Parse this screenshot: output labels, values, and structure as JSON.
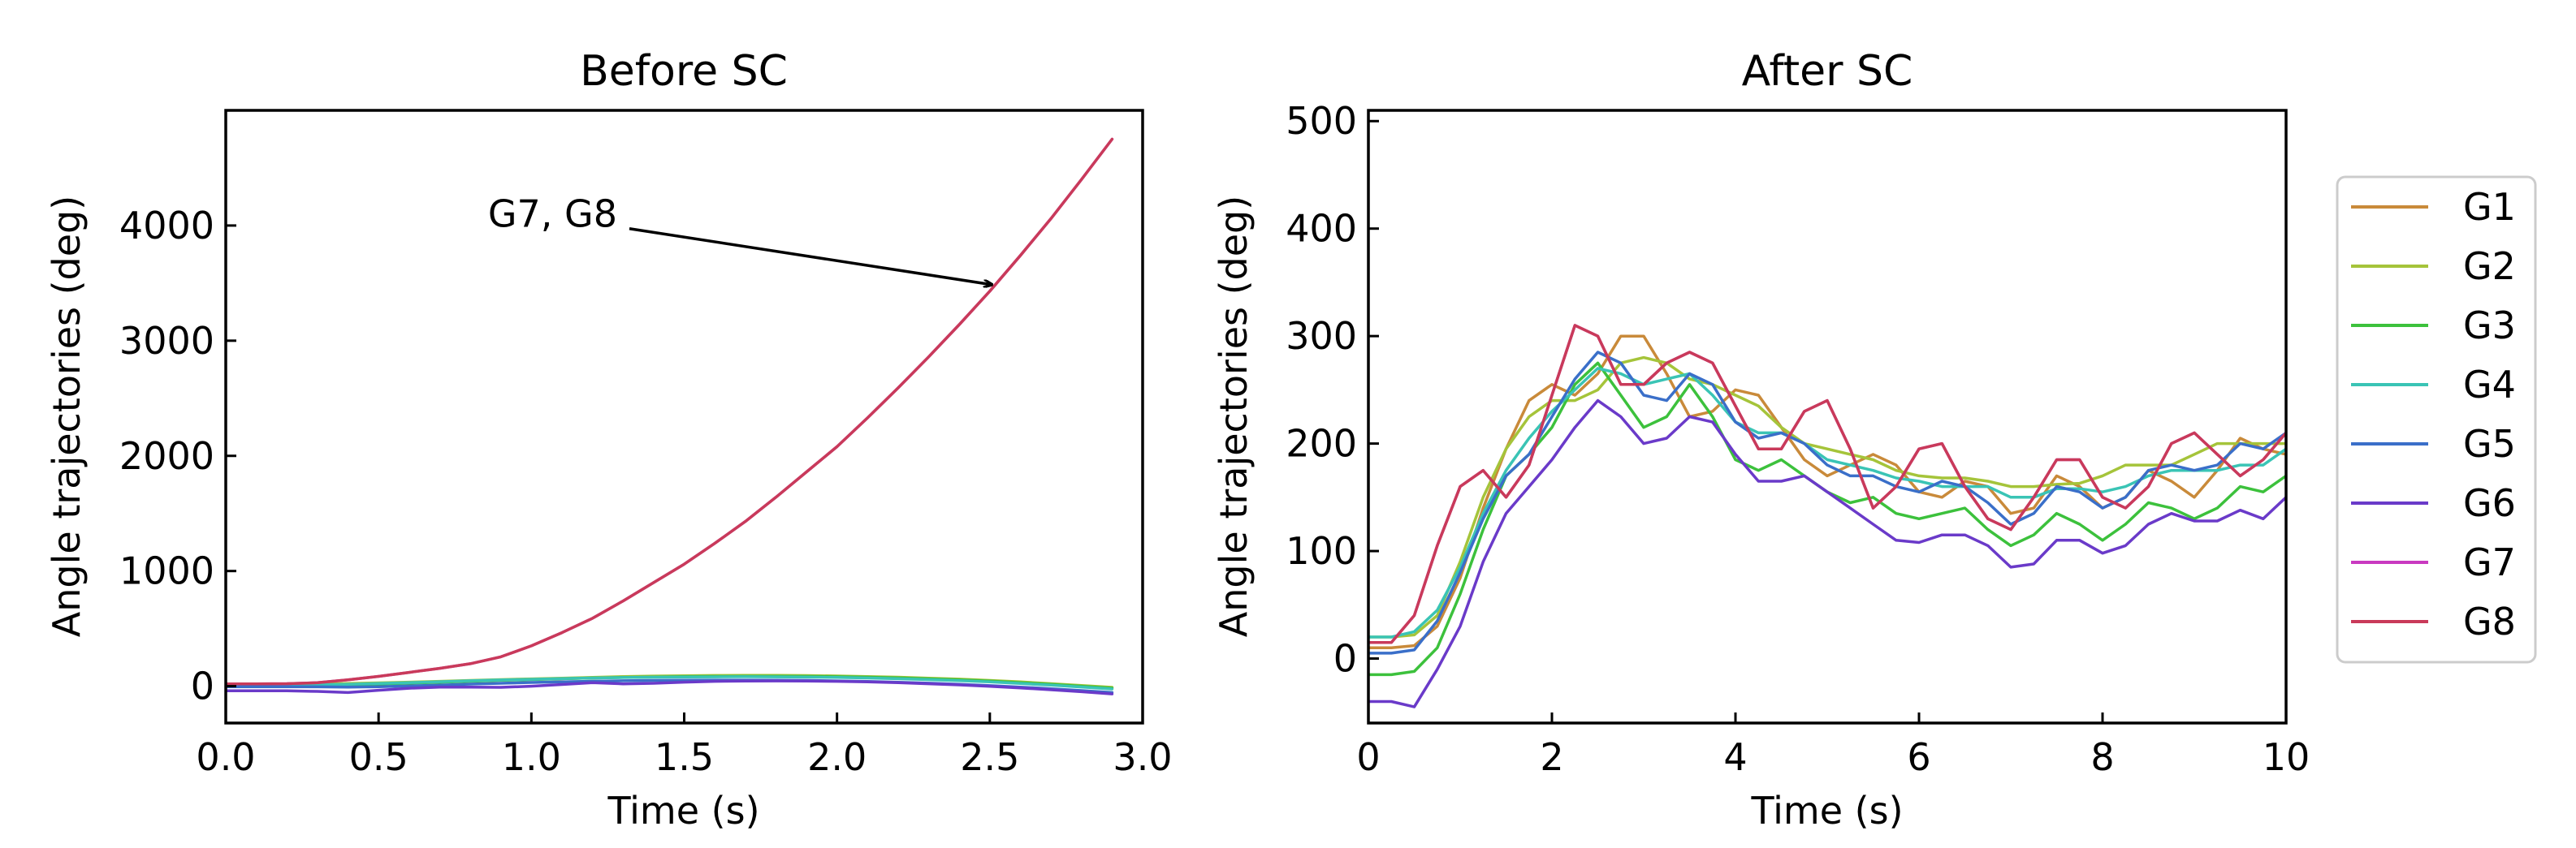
{
  "chart_data": [
    {
      "type": "line",
      "title": "Before SC",
      "xlabel": "Time (s)",
      "ylabel": "Angle trajectories (deg)",
      "xlim": [
        0,
        3
      ],
      "ylim": [
        -320,
        5000
      ],
      "xticks": [
        0.0,
        0.5,
        1.0,
        1.5,
        2.0,
        2.5,
        3.0
      ],
      "xtick_labels": [
        "0.0",
        "0.5",
        "1.0",
        "1.5",
        "2.0",
        "2.5",
        "3.0"
      ],
      "yticks": [
        0,
        1000,
        2000,
        3000,
        4000
      ],
      "ytick_labels": [
        "0",
        "1000",
        "2000",
        "3000",
        "4000"
      ],
      "annotation": {
        "text": "G7, G8",
        "text_x": 0.55,
        "text_y": 4100,
        "arrow_to_x": 2.5,
        "arrow_to_y": 3500
      },
      "x": [
        0,
        0.1,
        0.2,
        0.3,
        0.4,
        0.5,
        0.6,
        0.7,
        0.8,
        0.9,
        1.0,
        1.1,
        1.2,
        1.3,
        1.4,
        1.5,
        1.6,
        1.7,
        1.8,
        1.9,
        2.0,
        2.1,
        2.2,
        2.3,
        2.4,
        2.5,
        2.6,
        2.7,
        2.8,
        2.9
      ],
      "series": [
        {
          "name": "G1",
          "color": "#c98a3a",
          "values": [
            10,
            10,
            12,
            15,
            20,
            25,
            30,
            38,
            45,
            52,
            58,
            65,
            72,
            78,
            82,
            85,
            87,
            88,
            88,
            87,
            84,
            80,
            74,
            66,
            57,
            46,
            33,
            18,
            2,
            -15
          ]
        },
        {
          "name": "G2",
          "color": "#a5c43a",
          "values": [
            12,
            12,
            14,
            18,
            23,
            29,
            35,
            42,
            50,
            57,
            63,
            70,
            77,
            83,
            88,
            91,
            93,
            94,
            94,
            92,
            89,
            84,
            78,
            70,
            61,
            50,
            37,
            22,
            6,
            -10
          ]
        },
        {
          "name": "G3",
          "color": "#3cc13c",
          "values": [
            0,
            0,
            2,
            6,
            12,
            18,
            26,
            34,
            43,
            51,
            58,
            65,
            71,
            76,
            80,
            83,
            85,
            86,
            86,
            85,
            82,
            78,
            72,
            64,
            55,
            44,
            31,
            16,
            0,
            -17
          ]
        },
        {
          "name": "G4",
          "color": "#3ac4b5",
          "values": [
            5,
            5,
            7,
            11,
            17,
            24,
            31,
            39,
            47,
            54,
            60,
            66,
            71,
            75,
            78,
            80,
            81,
            82,
            81,
            79,
            76,
            71,
            65,
            57,
            48,
            37,
            24,
            9,
            -7,
            -24
          ]
        },
        {
          "name": "G5",
          "color": "#3a6fc9",
          "values": [
            -5,
            -5,
            -5,
            -6,
            -8,
            -4,
            2,
            10,
            18,
            25,
            32,
            38,
            43,
            47,
            50,
            52,
            53,
            53,
            52,
            50,
            46,
            41,
            34,
            26,
            16,
            5,
            -8,
            -22,
            -38,
            -55
          ]
        },
        {
          "name": "G6",
          "color": "#6a3ac9",
          "values": [
            -40,
            -40,
            -40,
            -45,
            -55,
            -35,
            -18,
            -8,
            -8,
            -10,
            0,
            15,
            30,
            20,
            25,
            35,
            42,
            45,
            46,
            45,
            42,
            37,
            30,
            21,
            11,
            -1,
            -15,
            -31,
            -48,
            -67
          ]
        },
        {
          "name": "G7",
          "color": "#c93ac0",
          "values": [
            20,
            20,
            22,
            30,
            55,
            85,
            120,
            155,
            195,
            255,
            350,
            465,
            590,
            740,
            900,
            1060,
            1240,
            1430,
            1640,
            1860,
            2080,
            2330,
            2590,
            2860,
            3140,
            3430,
            3740,
            4060,
            4400,
            4750
          ]
        },
        {
          "name": "G8",
          "color": "#c93a5a",
          "values": [
            20,
            20,
            22,
            30,
            55,
            85,
            120,
            155,
            195,
            255,
            350,
            465,
            590,
            740,
            900,
            1060,
            1240,
            1430,
            1640,
            1860,
            2080,
            2330,
            2590,
            2860,
            3140,
            3430,
            3740,
            4060,
            4400,
            4750
          ]
        }
      ]
    },
    {
      "type": "line",
      "title": "After SC",
      "xlabel": "Time (s)",
      "ylabel": "Angle trajectories (deg)",
      "xlim": [
        0,
        10
      ],
      "ylim": [
        -60,
        510
      ],
      "xticks": [
        0,
        2,
        4,
        6,
        8,
        10
      ],
      "xtick_labels": [
        "0",
        "2",
        "4",
        "6",
        "8",
        "10"
      ],
      "yticks": [
        0,
        100,
        200,
        300,
        400,
        500
      ],
      "ytick_labels": [
        "0",
        "100",
        "200",
        "300",
        "400",
        "500"
      ],
      "legend_position": "outside-right",
      "x": [
        0,
        0.25,
        0.5,
        0.75,
        1.0,
        1.25,
        1.5,
        1.75,
        2.0,
        2.25,
        2.5,
        2.75,
        3.0,
        3.25,
        3.5,
        3.75,
        4.0,
        4.25,
        4.5,
        4.75,
        5.0,
        5.25,
        5.5,
        5.75,
        6.0,
        6.25,
        6.5,
        6.75,
        7.0,
        7.25,
        7.5,
        7.75,
        8.0,
        8.25,
        8.5,
        8.75,
        9.0,
        9.25,
        9.5,
        9.75,
        10.0
      ],
      "series": [
        {
          "name": "G1",
          "color": "#c98a3a",
          "values": [
            10,
            10,
            12,
            30,
            75,
            140,
            195,
            240,
            255,
            245,
            265,
            300,
            300,
            265,
            225,
            230,
            250,
            245,
            215,
            185,
            170,
            180,
            190,
            180,
            155,
            150,
            165,
            160,
            135,
            140,
            170,
            160,
            140,
            150,
            175,
            165,
            150,
            175,
            205,
            195,
            190
          ]
        },
        {
          "name": "G2",
          "color": "#a5c43a",
          "values": [
            20,
            20,
            22,
            40,
            90,
            150,
            195,
            225,
            240,
            240,
            250,
            275,
            280,
            275,
            260,
            255,
            245,
            235,
            215,
            200,
            195,
            190,
            185,
            175,
            170,
            168,
            168,
            165,
            160,
            160,
            162,
            163,
            170,
            180,
            180,
            180,
            190,
            200,
            200,
            200,
            200
          ]
        },
        {
          "name": "G3",
          "color": "#3cc13c",
          "values": [
            -15,
            -15,
            -12,
            10,
            60,
            120,
            170,
            190,
            215,
            255,
            275,
            245,
            215,
            225,
            255,
            225,
            185,
            175,
            185,
            170,
            155,
            145,
            150,
            135,
            130,
            135,
            140,
            120,
            105,
            115,
            135,
            125,
            110,
            125,
            145,
            140,
            130,
            140,
            160,
            155,
            170
          ]
        },
        {
          "name": "G4",
          "color": "#3ac4b5",
          "values": [
            20,
            20,
            25,
            45,
            85,
            135,
            175,
            205,
            230,
            250,
            270,
            265,
            255,
            260,
            265,
            245,
            220,
            210,
            210,
            200,
            185,
            180,
            175,
            168,
            165,
            160,
            160,
            160,
            150,
            150,
            158,
            158,
            155,
            160,
            170,
            175,
            175,
            175,
            180,
            180,
            195
          ]
        },
        {
          "name": "G5",
          "color": "#3a6fc9",
          "values": [
            5,
            5,
            8,
            35,
            80,
            130,
            170,
            190,
            225,
            260,
            285,
            275,
            245,
            240,
            265,
            255,
            220,
            205,
            210,
            200,
            180,
            170,
            170,
            160,
            155,
            165,
            160,
            145,
            125,
            135,
            160,
            155,
            140,
            150,
            175,
            180,
            175,
            180,
            200,
            195,
            210
          ]
        },
        {
          "name": "G6",
          "color": "#6a3ac9",
          "values": [
            -40,
            -40,
            -45,
            -10,
            30,
            90,
            135,
            160,
            185,
            215,
            240,
            225,
            200,
            205,
            225,
            220,
            190,
            165,
            165,
            170,
            155,
            140,
            125,
            110,
            108,
            115,
            115,
            105,
            85,
            88,
            110,
            110,
            98,
            105,
            125,
            135,
            128,
            128,
            138,
            130,
            150
          ]
        },
        {
          "name": "G7",
          "color": "#c93ac0",
          "values": [
            15,
            15,
            40,
            105,
            160,
            175,
            150,
            180,
            245,
            310,
            300,
            255,
            255,
            275,
            285,
            275,
            235,
            195,
            195,
            230,
            240,
            195,
            140,
            160,
            195,
            200,
            160,
            130,
            120,
            150,
            185,
            185,
            150,
            140,
            160,
            200,
            210,
            190,
            170,
            185,
            210
          ]
        },
        {
          "name": "G8",
          "color": "#c93a5a",
          "values": [
            15,
            15,
            40,
            105,
            160,
            175,
            150,
            180,
            245,
            310,
            300,
            255,
            255,
            275,
            285,
            275,
            235,
            195,
            195,
            230,
            240,
            195,
            140,
            160,
            195,
            200,
            160,
            130,
            120,
            150,
            185,
            185,
            150,
            140,
            160,
            200,
            210,
            190,
            170,
            185,
            210
          ]
        }
      ]
    }
  ]
}
